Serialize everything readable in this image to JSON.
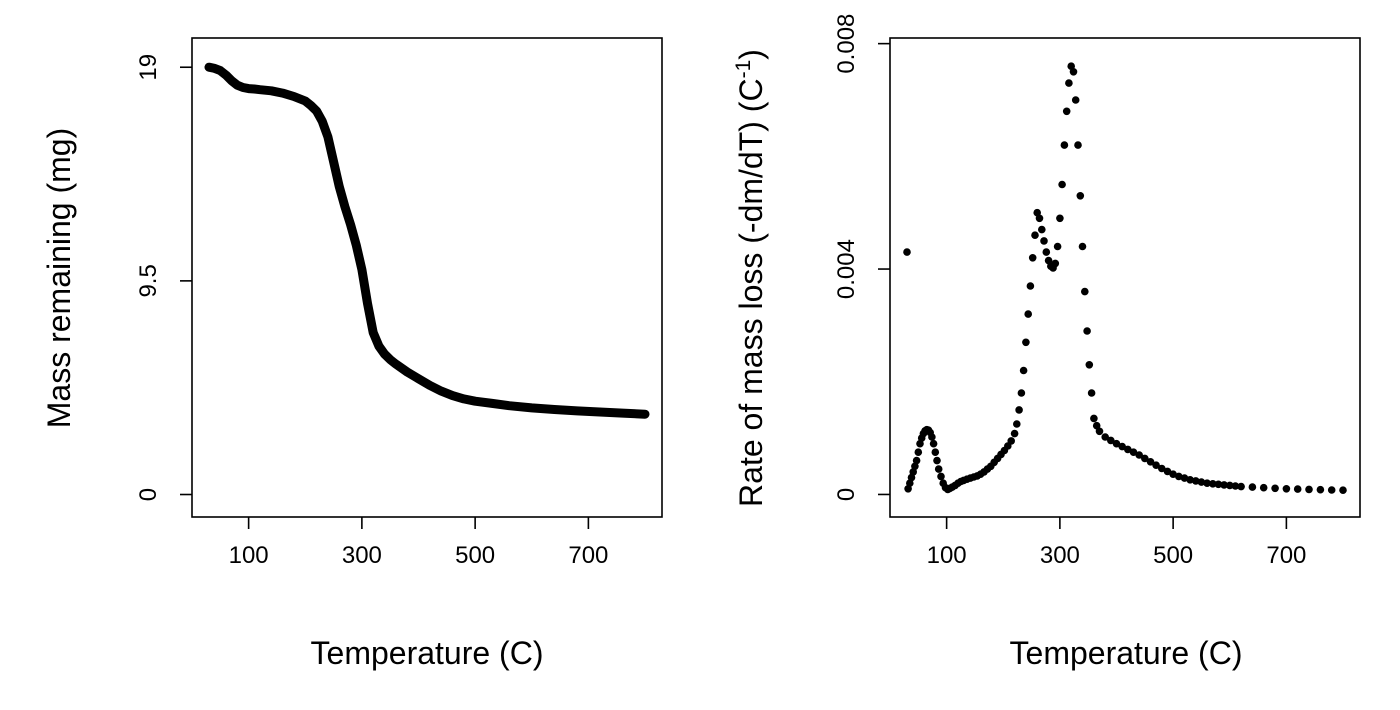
{
  "chart_data": [
    {
      "type": "line",
      "xlabel": "Temperature (C)",
      "ylabel": "Mass remaining (mg)",
      "xlim": [
        0,
        830
      ],
      "ylim": [
        -1,
        20.3
      ],
      "xticks": [
        100,
        300,
        500,
        700
      ],
      "xtick_labels": [
        "100",
        "300",
        "500",
        "700"
      ],
      "yticks": [
        0,
        9.5,
        19
      ],
      "ytick_labels": [
        "0",
        "9.5",
        "19"
      ],
      "grid": false,
      "color": "#000000",
      "x": [
        30,
        40,
        50,
        60,
        70,
        80,
        90,
        100,
        110,
        120,
        140,
        160,
        180,
        200,
        210,
        220,
        230,
        240,
        250,
        260,
        270,
        280,
        290,
        300,
        310,
        320,
        330,
        340,
        350,
        360,
        380,
        400,
        420,
        440,
        460,
        480,
        500,
        530,
        560,
        600,
        640,
        680,
        720,
        760,
        800
      ],
      "y": [
        19.0,
        18.95,
        18.85,
        18.65,
        18.4,
        18.2,
        18.1,
        18.05,
        18.03,
        18.0,
        17.95,
        17.85,
        17.7,
        17.5,
        17.3,
        17.05,
        16.6,
        15.9,
        14.8,
        13.7,
        12.8,
        12.0,
        11.1,
        10.0,
        8.5,
        7.2,
        6.6,
        6.25,
        6.0,
        5.8,
        5.45,
        5.15,
        4.85,
        4.6,
        4.4,
        4.25,
        4.15,
        4.05,
        3.95,
        3.85,
        3.78,
        3.72,
        3.67,
        3.62,
        3.57
      ]
    },
    {
      "type": "scatter",
      "xlabel": "Temperature (C)",
      "ylabel_main": "Rate of mass loss (-dm/dT) (C",
      "ylabel_sup": "-1",
      "ylabel_end": ")",
      "xlim": [
        0,
        830
      ],
      "ylim": [
        -0.0004,
        0.0081
      ],
      "xticks": [
        100,
        300,
        500,
        700
      ],
      "xtick_labels": [
        "100",
        "300",
        "500",
        "700"
      ],
      "yticks": [
        0,
        0.004,
        0.008
      ],
      "ytick_labels": [
        "0",
        "0.004",
        "0.008"
      ],
      "grid": false,
      "color": "#000000",
      "x": [
        30,
        32,
        35,
        38,
        41,
        44,
        47,
        50,
        53,
        56,
        59,
        62,
        65,
        68,
        71,
        74,
        77,
        80,
        83,
        86,
        90,
        94,
        98,
        102,
        106,
        110,
        115,
        120,
        125,
        130,
        136,
        142,
        148,
        154,
        160,
        166,
        172,
        178,
        184,
        190,
        196,
        202,
        208,
        214,
        220,
        224,
        228,
        232,
        236,
        240,
        244,
        248,
        252,
        256,
        260,
        264,
        268,
        272,
        276,
        280,
        284,
        288,
        292,
        296,
        300,
        304,
        308,
        312,
        316,
        320,
        324,
        328,
        332,
        336,
        340,
        344,
        348,
        352,
        356,
        360,
        365,
        370,
        380,
        390,
        400,
        410,
        420,
        430,
        440,
        450,
        460,
        470,
        480,
        490,
        500,
        510,
        520,
        530,
        540,
        550,
        560,
        570,
        580,
        590,
        600,
        610,
        620,
        640,
        660,
        680,
        700,
        720,
        740,
        760,
        780,
        800
      ],
      "y": [
        0.0043,
        0.0001,
        0.0002,
        0.0003,
        0.0004,
        0.0005,
        0.0006,
        0.00075,
        0.0009,
        0.001,
        0.00108,
        0.00113,
        0.00115,
        0.00114,
        0.0011,
        0.00102,
        0.0009,
        0.00075,
        0.0006,
        0.00045,
        0.00032,
        0.0002,
        0.00012,
        9e-05,
        0.00011,
        0.00013,
        0.00016,
        0.0002,
        0.00023,
        0.00025,
        0.00027,
        0.00029,
        0.00031,
        0.00033,
        0.00036,
        0.0004,
        0.00045,
        0.0005,
        0.00057,
        0.00064,
        0.00071,
        0.00078,
        0.00086,
        0.00095,
        0.00108,
        0.00125,
        0.0015,
        0.0018,
        0.0022,
        0.0027,
        0.0032,
        0.0037,
        0.0042,
        0.0046,
        0.005,
        0.0049,
        0.0047,
        0.0045,
        0.0043,
        0.00415,
        0.00405,
        0.00402,
        0.0041,
        0.0044,
        0.0049,
        0.0055,
        0.0062,
        0.0068,
        0.0073,
        0.0076,
        0.0075,
        0.007,
        0.0062,
        0.0053,
        0.0044,
        0.0036,
        0.0029,
        0.0023,
        0.0018,
        0.00135,
        0.00122,
        0.00112,
        0.00102,
        0.00096,
        0.0009,
        0.00085,
        0.0008,
        0.00075,
        0.0007,
        0.00064,
        0.00058,
        0.00052,
        0.00046,
        0.00041,
        0.00036,
        0.00032,
        0.00029,
        0.00026,
        0.00024,
        0.00022,
        0.0002,
        0.00019,
        0.00018,
        0.00017,
        0.00016,
        0.00015,
        0.00014,
        0.00013,
        0.00012,
        0.00011,
        0.0001,
        9.5e-05,
        9e-05,
        8.5e-05,
        8e-05,
        7.5e-05
      ]
    }
  ]
}
